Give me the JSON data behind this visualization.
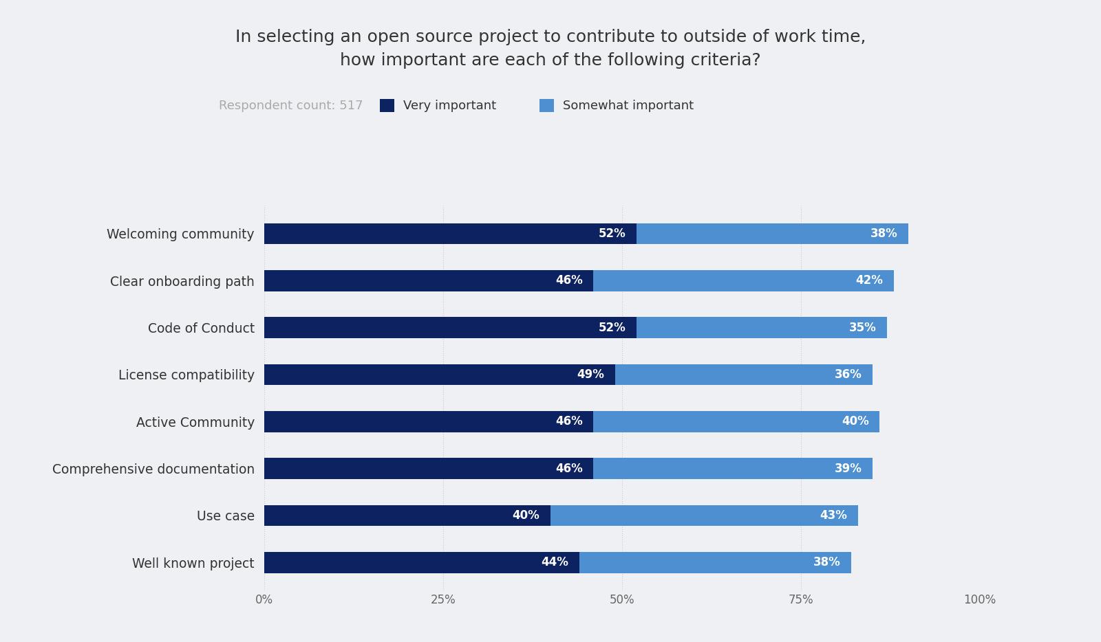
{
  "title": "In selecting an open source project to contribute to outside of work time,\nhow important are each of the following criteria?",
  "subtitle": "Respondent count: 517",
  "legend_labels": [
    "Very important",
    "Somewhat important"
  ],
  "categories": [
    "Welcoming community",
    "Clear onboarding path",
    "Code of Conduct",
    "License compatibility",
    "Active Community",
    "Comprehensive documentation",
    "Use case",
    "Well known project"
  ],
  "very_important": [
    52,
    46,
    52,
    49,
    46,
    46,
    40,
    44
  ],
  "somewhat_important": [
    38,
    42,
    35,
    36,
    40,
    39,
    43,
    38
  ],
  "color_very": "#0d2260",
  "color_somewhat": "#4d8fd1",
  "background_color": "#eef0f4",
  "title_fontsize": 18,
  "subtitle_fontsize": 13,
  "label_fontsize": 13.5,
  "tick_fontsize": 12,
  "bar_label_fontsize": 12,
  "xlim": [
    0,
    100
  ],
  "xticks": [
    0,
    25,
    50,
    75,
    100
  ],
  "xtick_labels": [
    "0%",
    "25%",
    "50%",
    "75%",
    "100%"
  ]
}
